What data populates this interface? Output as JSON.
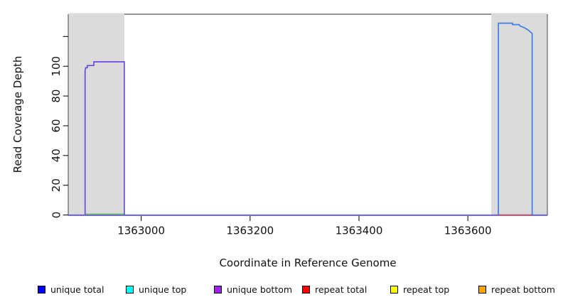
{
  "chart_data": {
    "type": "line",
    "title": "",
    "xlabel": "Coordinate in Reference Genome",
    "ylabel": "Read Coverage Depth",
    "xlim": [
      1362866,
      1363746
    ],
    "ylim": [
      0,
      135
    ],
    "grid": false,
    "x_ticks": [
      {
        "value": 1363000,
        "label": "1363000"
      },
      {
        "value": 1363200,
        "label": "1363200"
      },
      {
        "value": 1363400,
        "label": "1363400"
      },
      {
        "value": 1363600,
        "label": "1363600"
      }
    ],
    "y_ticks": [
      {
        "value": 0,
        "label": "0"
      },
      {
        "value": 20,
        "label": "20"
      },
      {
        "value": 40,
        "label": "40"
      },
      {
        "value": 60,
        "label": "60"
      },
      {
        "value": 80,
        "label": "80"
      },
      {
        "value": 100,
        "label": "100"
      },
      {
        "value": 120,
        "label": ""
      }
    ],
    "shaded_regions": [
      {
        "x0": 1362866,
        "x1": 1362969,
        "color": "#dbdbdb"
      },
      {
        "x0": 1363643,
        "x1": 1363746,
        "color": "#dbdbdb"
      }
    ],
    "series": [
      {
        "name": "zero-baseline-all-series",
        "color": "#7263ec",
        "width": 1.4,
        "points": [
          [
            1362866,
            0
          ],
          [
            1363746,
            0
          ]
        ]
      },
      {
        "name": "repeat-zero-baseline-right-block",
        "color": "#cf4f62",
        "width": 1.5,
        "points": [
          [
            1363656,
            0
          ],
          [
            1363718,
            0
          ]
        ]
      },
      {
        "name": "top-strand-zero-baseline-left-block",
        "color": "#66bf6e",
        "width": 1.5,
        "points": [
          [
            1362897,
            0.6
          ],
          [
            1362969,
            0.6
          ]
        ]
      },
      {
        "name": "unique-coverage-left-block",
        "color": "#6a4be8",
        "width": 1.7,
        "points": [
          [
            1362897,
            0
          ],
          [
            1362897,
            97
          ],
          [
            1362898,
            99
          ],
          [
            1362901,
            99
          ],
          [
            1362901,
            100.5
          ],
          [
            1362913,
            100.5
          ],
          [
            1362913,
            103
          ],
          [
            1362969,
            103
          ],
          [
            1362969,
            0
          ]
        ]
      },
      {
        "name": "unique-coverage-right-block",
        "color": "#3e7de8",
        "width": 1.7,
        "points": [
          [
            1363656,
            0
          ],
          [
            1363656,
            129
          ],
          [
            1363682,
            129
          ],
          [
            1363682,
            128
          ],
          [
            1363694,
            128
          ],
          [
            1363696,
            127
          ],
          [
            1363703,
            126
          ],
          [
            1363708,
            125
          ],
          [
            1363712,
            124
          ],
          [
            1363715,
            123
          ],
          [
            1363718,
            122
          ],
          [
            1363718,
            0
          ]
        ]
      }
    ],
    "legend": {
      "position": "bottom",
      "items": [
        {
          "label": "unique total",
          "color": "#0000ff"
        },
        {
          "label": "unique top",
          "color": "#00ffff"
        },
        {
          "label": "unique bottom",
          "color": "#a020f0"
        },
        {
          "label": "repeat total",
          "color": "#ff0000"
        },
        {
          "label": "repeat top",
          "color": "#ffff00"
        },
        {
          "label": "repeat bottom",
          "color": "#ffa500"
        }
      ]
    }
  }
}
